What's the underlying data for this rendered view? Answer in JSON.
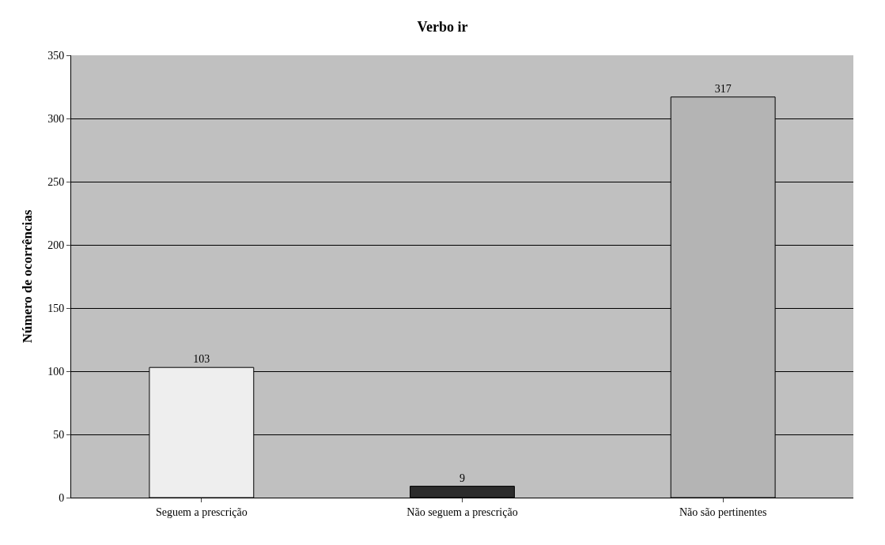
{
  "chart_data": {
    "type": "bar",
    "title": "Verbo ir",
    "ylabel": "Número de ocorrências",
    "categories": [
      "Seguem a prescrição",
      "Não seguem a prescrição",
      "Não são pertinentes"
    ],
    "values": [
      103,
      9,
      317
    ],
    "colors": [
      "#eeeeee",
      "#2b2b2b",
      "#b4b4b4"
    ],
    "ylim": [
      0,
      350
    ],
    "yticks": [
      0,
      50,
      100,
      150,
      200,
      250,
      300,
      350
    ],
    "grid": "y",
    "data_labels": true
  }
}
